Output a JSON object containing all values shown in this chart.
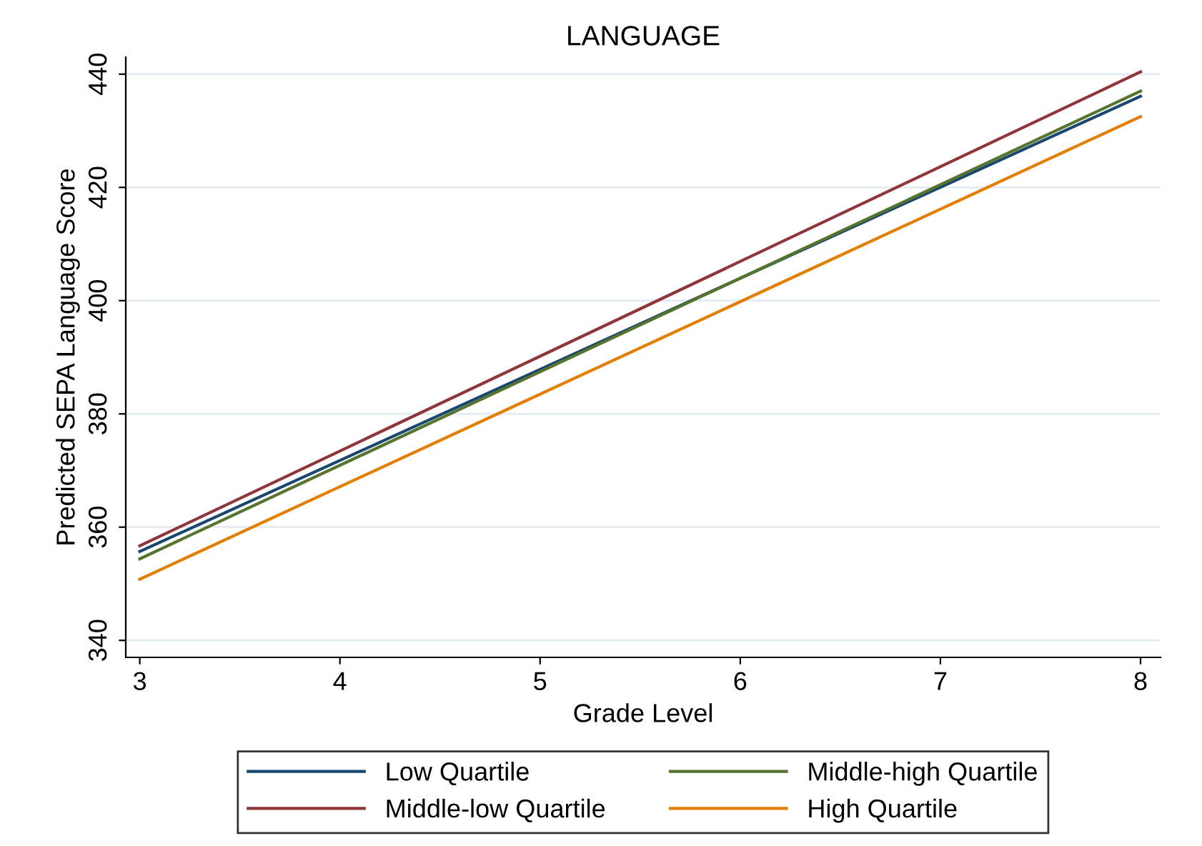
{
  "chart_data": {
    "type": "line",
    "title": "LANGUAGE",
    "xlabel": "Grade Level",
    "ylabel": "Predicted SEPA Language Score",
    "x": [
      3,
      8
    ],
    "xlim": [
      2.93,
      8.1
    ],
    "xticks": [
      3,
      4,
      5,
      6,
      7,
      8
    ],
    "ylim": [
      337,
      443
    ],
    "yticks": [
      340,
      360,
      380,
      400,
      420,
      440
    ],
    "grid": "y",
    "legend": "bottom",
    "marker": "none",
    "line_style": "solid",
    "series": [
      {
        "name": "Low Quartile",
        "color": "#1a476f",
        "values": [
          355.7,
          436.1
        ]
      },
      {
        "name": "Middle-low Quartile",
        "color": "#90353b",
        "values": [
          356.7,
          440.4
        ]
      },
      {
        "name": "Middle-high Quartile",
        "color": "#55752f",
        "values": [
          354.4,
          437.0
        ]
      },
      {
        "name": "High Quartile",
        "color": "#e37e00",
        "values": [
          350.8,
          432.5
        ]
      }
    ]
  }
}
